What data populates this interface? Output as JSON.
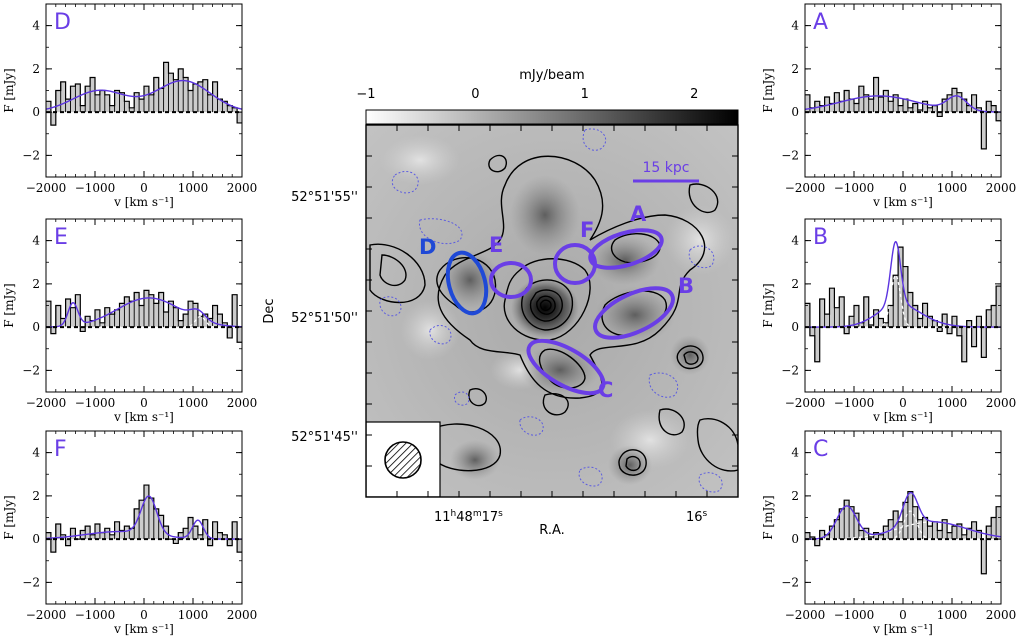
{
  "colors": {
    "fit": "#5b34e0",
    "labels": "#6a3ee6",
    "regionD": "#1f49d6",
    "hist_fill": "#cccccc",
    "dashed_fit": "#ffffff"
  },
  "chart_data": [
    {
      "type": "image",
      "title": "mJy/beam",
      "colorbar": {
        "ticks": [
          "−1",
          "0",
          "1",
          "2"
        ],
        "range": [
          -1,
          2.4
        ]
      },
      "xlabel": "R.A.",
      "ylabel": "Dec",
      "ra_ticks": [
        "11h48m17s",
        "16s"
      ],
      "ra_tick_parts": {
        "h": "11",
        "h_sup": "h",
        "m": "48",
        "m_sup": "m",
        "s": "17",
        "s_sup": "s",
        "s2": "16",
        "s2_sup": "s"
      },
      "dec_ticks": [
        "52°51'55''",
        "52°51'50''",
        "52°51'45''"
      ],
      "scalebar_label": "15 kpc",
      "regions": [
        "D",
        "E",
        "F",
        "A",
        "B",
        "C"
      ]
    },
    {
      "type": "histogram_with_fit",
      "label": "D",
      "xlabel": "v [km s⁻¹]",
      "ylabel": "F [mJy]",
      "xlim": [
        -2000,
        2000
      ],
      "ylim": [
        -3,
        5
      ],
      "xticks": [
        "−2000",
        "−1000",
        "0",
        "1000",
        "2000"
      ],
      "yticks": [
        "−2",
        "0",
        "2",
        "4"
      ],
      "x_start": -2000,
      "bin_width": 100,
      "values": [
        0.5,
        -0.6,
        1.0,
        1.4,
        0.6,
        1.2,
        1.3,
        0.3,
        1.2,
        1.6,
        0.8,
        1.0,
        0.8,
        0.3,
        1.0,
        0.9,
        0.5,
        0.2,
        0.9,
        0.6,
        1.2,
        0.8,
        1.6,
        1.1,
        2.3,
        1.8,
        1.5,
        2.0,
        1.6,
        1.0,
        1.3,
        1.4,
        1.5,
        0.8,
        1.4,
        0.6,
        0.5,
        0.3,
        0.2,
        -0.5
      ],
      "fit": [
        {
          "amp": 1.0,
          "mu": -900,
          "sigma": 550
        },
        {
          "amp": 1.45,
          "mu": 800,
          "sigma": 550
        }
      ],
      "components": []
    },
    {
      "type": "histogram_with_fit",
      "label": "E",
      "xlabel": "v [km s⁻¹]",
      "ylabel": "F [mJy]",
      "xlim": [
        -2000,
        2000
      ],
      "ylim": [
        -3,
        5
      ],
      "xticks": [
        "−2000",
        "−1000",
        "0",
        "1000",
        "2000"
      ],
      "yticks": [
        "−2",
        "0",
        "2",
        "4"
      ],
      "x_start": -2000,
      "bin_width": 100,
      "values": [
        1.2,
        -0.3,
        1.0,
        0.4,
        1.3,
        0.9,
        1.5,
        -0.2,
        0.5,
        0.3,
        0.8,
        0.2,
        0.9,
        0.6,
        0.8,
        1.1,
        1.4,
        1.2,
        1.6,
        1.0,
        1.7,
        1.5,
        1.1,
        1.6,
        0.7,
        1.2,
        0.9,
        0.3,
        0.6,
        1.2,
        1.1,
        0.5,
        0.6,
        0.4,
        1.0,
        0.6,
        0.2,
        -0.5,
        1.5,
        -0.7
      ],
      "fit": [
        {
          "amp": 1.05,
          "mu": -1450,
          "sigma": 100
        },
        {
          "amp": 1.35,
          "mu": 100,
          "sigma": 650
        },
        {
          "amp": 0.4,
          "mu": 1100,
          "sigma": 150
        }
      ],
      "components": [
        {
          "amp": 0.5,
          "mu": 1150,
          "sigma": 100
        }
      ]
    },
    {
      "type": "histogram_with_fit",
      "label": "F",
      "xlabel": "v [km s⁻¹]",
      "ylabel": "F [mJy]",
      "xlim": [
        -2000,
        2000
      ],
      "ylim": [
        -3,
        5
      ],
      "xticks": [
        "−2000",
        "−1000",
        "0",
        "1000",
        "2000"
      ],
      "yticks": [
        "−2",
        "0",
        "2",
        "4"
      ],
      "x_start": -2000,
      "bin_width": 100,
      "values": [
        0.3,
        -0.6,
        0.7,
        0.2,
        -0.3,
        0.5,
        0.0,
        0.4,
        0.6,
        0.2,
        0.7,
        0.3,
        0.5,
        0.2,
        0.8,
        0.4,
        0.6,
        0.5,
        1.4,
        1.8,
        2.5,
        1.9,
        1.4,
        1.1,
        0.6,
        0.0,
        -0.2,
        0.3,
        0.5,
        1.0,
        0.6,
        0.2,
        0.9,
        -0.3,
        0.8,
        0.3,
        0.2,
        -0.3,
        0.8,
        -0.6
      ],
      "fit": [
        {
          "amp": 0.35,
          "mu": -500,
          "sigma": 700
        },
        {
          "amp": 1.75,
          "mu": 100,
          "sigma": 160
        },
        {
          "amp": 0.85,
          "mu": 1100,
          "sigma": 110
        }
      ],
      "components": []
    },
    {
      "type": "histogram_with_fit",
      "label": "A",
      "xlabel": "v [km s⁻¹]",
      "ylabel": "F [mJy]",
      "xlim": [
        -2000,
        2000
      ],
      "ylim": [
        -3,
        5
      ],
      "xticks": [
        "−2000",
        "−1000",
        "0",
        "1000",
        "2000"
      ],
      "yticks": [
        "−2",
        "0",
        "2",
        "4"
      ],
      "x_start": -2000,
      "bin_width": 100,
      "values": [
        0.8,
        0.2,
        0.5,
        0.3,
        0.7,
        0.4,
        0.9,
        0.5,
        1.0,
        0.6,
        0.4,
        1.2,
        0.8,
        0.6,
        1.6,
        0.7,
        1.0,
        0.5,
        0.8,
        0.3,
        0.6,
        0.2,
        0.4,
        0.1,
        0.5,
        0.2,
        0.3,
        -0.2,
        0.6,
        0.8,
        1.1,
        0.9,
        0.6,
        0.3,
        0.8,
        0.2,
        -1.7,
        0.5,
        0.3,
        -0.4
      ],
      "fit": [
        {
          "amp": 0.75,
          "mu": -500,
          "sigma": 800
        },
        {
          "amp": 0.65,
          "mu": 1100,
          "sigma": 200
        }
      ],
      "components": []
    },
    {
      "type": "histogram_with_fit",
      "label": "B",
      "xlabel": "v [km s⁻¹]",
      "ylabel": "F [mJy]",
      "xlim": [
        -2000,
        2000
      ],
      "ylim": [
        -3,
        5
      ],
      "xticks": [
        "−2000",
        "−1000",
        "0",
        "1000",
        "2000"
      ],
      "yticks": [
        "−2",
        "0",
        "2",
        "4"
      ],
      "x_start": -2000,
      "bin_width": 100,
      "values": [
        1.1,
        -0.4,
        -1.6,
        1.3,
        0.6,
        1.8,
        0.9,
        1.4,
        -0.3,
        0.5,
        1.0,
        0.2,
        1.4,
        0.1,
        0.8,
        0.4,
        0.2,
        1.0,
        2.4,
        3.7,
        2.8,
        1.6,
        1.0,
        0.4,
        1.1,
        0.5,
        0.3,
        -0.2,
        0.6,
        -0.3,
        0.5,
        -0.4,
        -1.6,
        0.3,
        -0.9,
        0.5,
        -1.4,
        0.8,
        1.0,
        1.9
      ],
      "fit": [
        {
          "amp": 0.4,
          "mu": 100,
          "sigma": 500
        },
        {
          "amp": 2.9,
          "mu": -150,
          "sigma": 100
        },
        {
          "amp": 0.7,
          "mu": -150,
          "sigma": 400
        }
      ],
      "components": [
        {
          "amp": 2.4,
          "mu": -150,
          "sigma": 100
        }
      ]
    },
    {
      "type": "histogram_with_fit",
      "label": "C",
      "xlabel": "v [km s⁻¹]",
      "ylabel": "F [mJy]",
      "xlim": [
        -2000,
        2000
      ],
      "ylim": [
        -3,
        5
      ],
      "xticks": [
        "−2000",
        "−1000",
        "0",
        "1000",
        "2000"
      ],
      "yticks": [
        "−2",
        "0",
        "2",
        "4"
      ],
      "x_start": -2000,
      "bin_width": 100,
      "values": [
        0.3,
        0.1,
        -0.3,
        0.4,
        0.2,
        0.6,
        0.9,
        1.4,
        1.8,
        1.5,
        1.2,
        0.4,
        0.5,
        0.1,
        0.3,
        0.2,
        0.6,
        0.9,
        1.3,
        0.8,
        1.7,
        2.2,
        1.5,
        0.9,
        1.0,
        0.6,
        0.8,
        0.4,
        0.9,
        0.3,
        0.6,
        0.7,
        0.2,
        0.5,
        0.8,
        0.4,
        -1.6,
        0.6,
        1.0,
        1.5
      ],
      "fit": [
        {
          "amp": 1.5,
          "mu": -1150,
          "sigma": 200
        },
        {
          "amp": 1.5,
          "mu": 150,
          "sigma": 150
        },
        {
          "amp": 0.8,
          "mu": 600,
          "sigma": 700
        }
      ],
      "components": [
        {
          "amp": 1.3,
          "mu": 150,
          "sigma": 130
        },
        {
          "amp": 0.8,
          "mu": 600,
          "sigma": 700
        }
      ]
    }
  ]
}
